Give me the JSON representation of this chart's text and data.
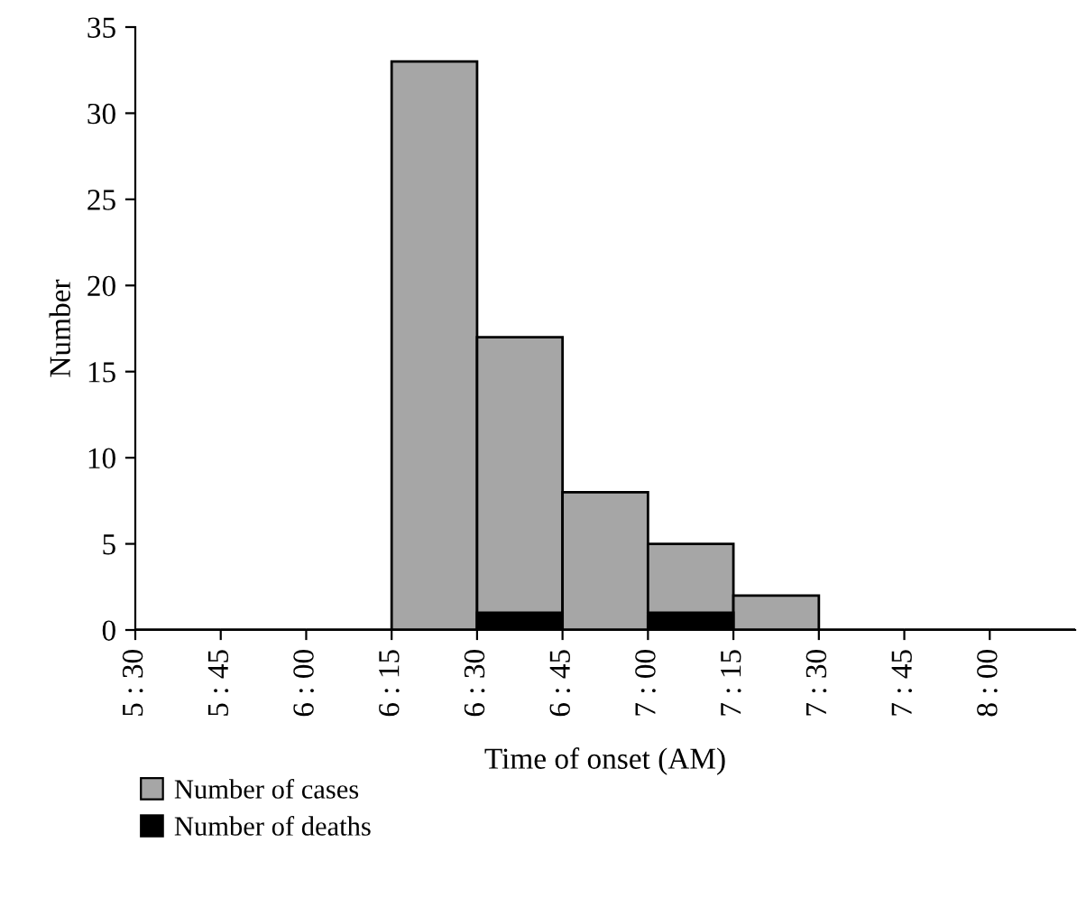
{
  "chart_data": {
    "type": "bar",
    "xlabel": "Time of onset (AM)",
    "ylabel": "Number",
    "categories": [
      "5 : 30",
      "5 : 45",
      "6 : 00",
      "6 : 15",
      "6 : 30",
      "6 : 45",
      "7 : 00",
      "7 : 15",
      "7 : 30",
      "7 : 45",
      "8 : 00"
    ],
    "series": [
      {
        "name": "Number of cases",
        "color": "#a6a6a6",
        "values": [
          0,
          0,
          0,
          33,
          17,
          8,
          5,
          2,
          0,
          0,
          0
        ]
      },
      {
        "name": "Number of deaths",
        "color": "#000000",
        "values": [
          0,
          0,
          0,
          0,
          1,
          0,
          1,
          0,
          0,
          0,
          0
        ]
      }
    ],
    "ylim": [
      0,
      35
    ],
    "yticks": [
      0,
      5,
      10,
      15,
      20,
      25,
      30,
      35
    ],
    "grid": false,
    "legend": "bottom"
  }
}
